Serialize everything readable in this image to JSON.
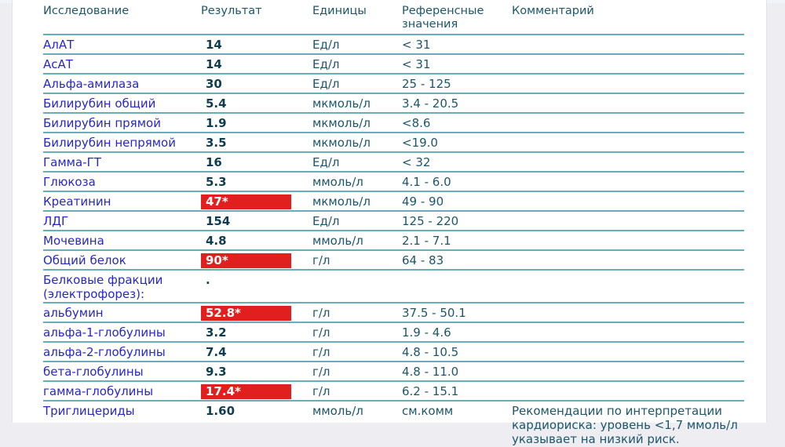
{
  "colors": {
    "page_background": "#eeeef2",
    "paper": "#ffffff",
    "row_line": "#68aeb8",
    "header_text": "#1c5668",
    "value_text": "#0f3d50",
    "test_name_text": "#2727c8",
    "flag_background": "#e11f1f",
    "flag_text": "#ffffff"
  },
  "table": {
    "columns": {
      "test": "Исследование",
      "result": "Результат",
      "units": "Единицы",
      "reference": "Референсные значения",
      "comment": "Комментарий"
    },
    "rows": [
      {
        "name": "АлАТ",
        "result": "14",
        "flag": false,
        "units": "Ед/л",
        "reference": "< 31",
        "comment": ""
      },
      {
        "name": "АсАТ",
        "result": "14",
        "flag": false,
        "units": "Ед/л",
        "reference": "< 31",
        "comment": ""
      },
      {
        "name": "Альфа-амилаза",
        "result": "30",
        "flag": false,
        "units": "Ед/л",
        "reference": "25 - 125",
        "comment": ""
      },
      {
        "name": "Билирубин общий",
        "result": "5.4",
        "flag": false,
        "units": "мкмоль/л",
        "reference": "3.4 - 20.5",
        "comment": ""
      },
      {
        "name": "Билирубин прямой",
        "result": "1.9",
        "flag": false,
        "units": "мкмоль/л",
        "reference": "<8.6",
        "comment": ""
      },
      {
        "name": "Билирубин непрямой",
        "result": "3.5",
        "flag": false,
        "units": "мкмоль/л",
        "reference": "<19.0",
        "comment": ""
      },
      {
        "name": "Гамма-ГТ",
        "result": "16",
        "flag": false,
        "units": "Ед/л",
        "reference": "< 32",
        "comment": ""
      },
      {
        "name": "Глюкоза",
        "result": "5.3",
        "flag": false,
        "units": "ммоль/л",
        "reference": "4.1 - 6.0",
        "comment": ""
      },
      {
        "name": "Креатинин",
        "result": "47*",
        "flag": true,
        "units": "мкмоль/л",
        "reference": "49 - 90",
        "comment": ""
      },
      {
        "name": "ЛДГ",
        "result": "154",
        "flag": false,
        "units": "Ед/л",
        "reference": "125 - 220",
        "comment": ""
      },
      {
        "name": "Мочевина",
        "result": "4.8",
        "flag": false,
        "units": "ммоль/л",
        "reference": "2.1 - 7.1",
        "comment": ""
      },
      {
        "name": "Общий белок",
        "result": "90*",
        "flag": true,
        "units": "г/л",
        "reference": "64 - 83",
        "comment": ""
      },
      {
        "name": "Белковые фракции (электрофорез):",
        "result": ".",
        "flag": false,
        "units": "",
        "reference": "",
        "comment": ""
      },
      {
        "name": "альбумин",
        "result": "52.8*",
        "flag": true,
        "units": "г/л",
        "reference": "37.5 - 50.1",
        "comment": ""
      },
      {
        "name": "альфа-1-глобулины",
        "result": "3.2",
        "flag": false,
        "units": "г/л",
        "reference": "1.9 - 4.6",
        "comment": ""
      },
      {
        "name": "альфа-2-глобулины",
        "result": "7.4",
        "flag": false,
        "units": "г/л",
        "reference": "4.8 - 10.5",
        "comment": ""
      },
      {
        "name": "бета-глобулины",
        "result": "9.3",
        "flag": false,
        "units": "г/л",
        "reference": "4.8 - 11.0",
        "comment": ""
      },
      {
        "name": "гамма-глобулины",
        "result": "17.4*",
        "flag": true,
        "units": "г/л",
        "reference": "6.2 - 15.1",
        "comment": ""
      },
      {
        "name": "Триглицериды",
        "result": "1.60",
        "flag": false,
        "units": "ммоль/л",
        "reference": "см.комм",
        "comment": "Рекомендации по интерпретации кардиориска: уровень <1,7 ммоль/л указывает на низкий риск.",
        "last": true
      }
    ]
  }
}
